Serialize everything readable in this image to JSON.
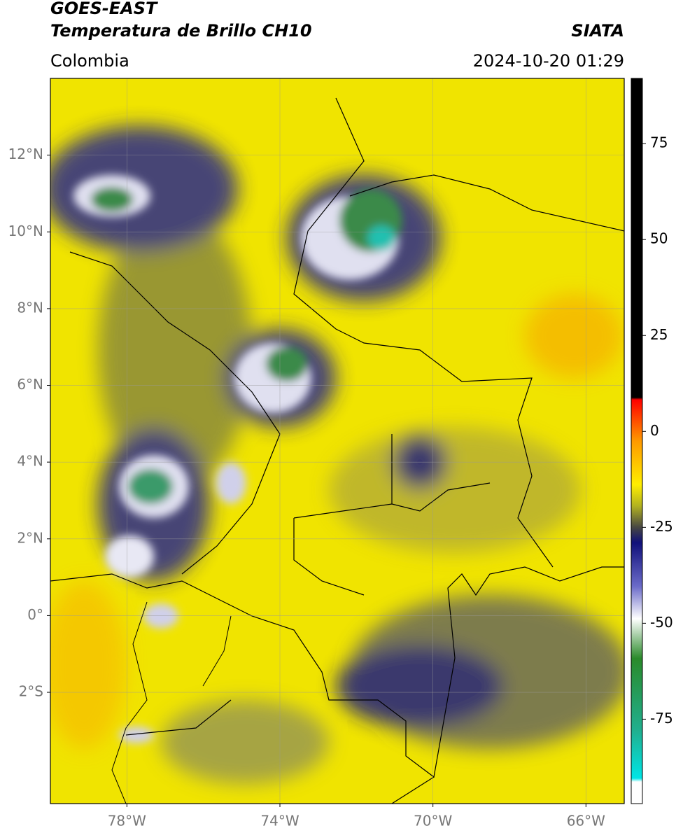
{
  "header": {
    "title": "GOES-EAST",
    "subtitle": "Temperatura de Brillo CH10",
    "source": "SIATA",
    "region": "Colombia",
    "datetime": "2024-10-20 01:29"
  },
  "map": {
    "xlim": [
      -80,
      -65
    ],
    "ylim": [
      -4.9,
      14
    ],
    "xticks": [
      {
        "value": -78,
        "label": "78°W"
      },
      {
        "value": -74,
        "label": "74°W"
      },
      {
        "value": -70,
        "label": "70°W"
      },
      {
        "value": -66,
        "label": "66°W"
      }
    ],
    "yticks": [
      {
        "value": 12,
        "label": "12°N"
      },
      {
        "value": 10,
        "label": "10°N"
      },
      {
        "value": 8,
        "label": "8°N"
      },
      {
        "value": 6,
        "label": "6°N"
      },
      {
        "value": 4,
        "label": "4°N"
      },
      {
        "value": 2,
        "label": "2°N"
      },
      {
        "value": 0,
        "label": "0°"
      },
      {
        "value": -2,
        "label": "2°S"
      }
    ],
    "grid": true
  },
  "colorbar": {
    "lim": [
      -97,
      92
    ],
    "ticks": [
      75,
      50,
      25,
      0,
      -25,
      -50,
      -75
    ]
  }
}
